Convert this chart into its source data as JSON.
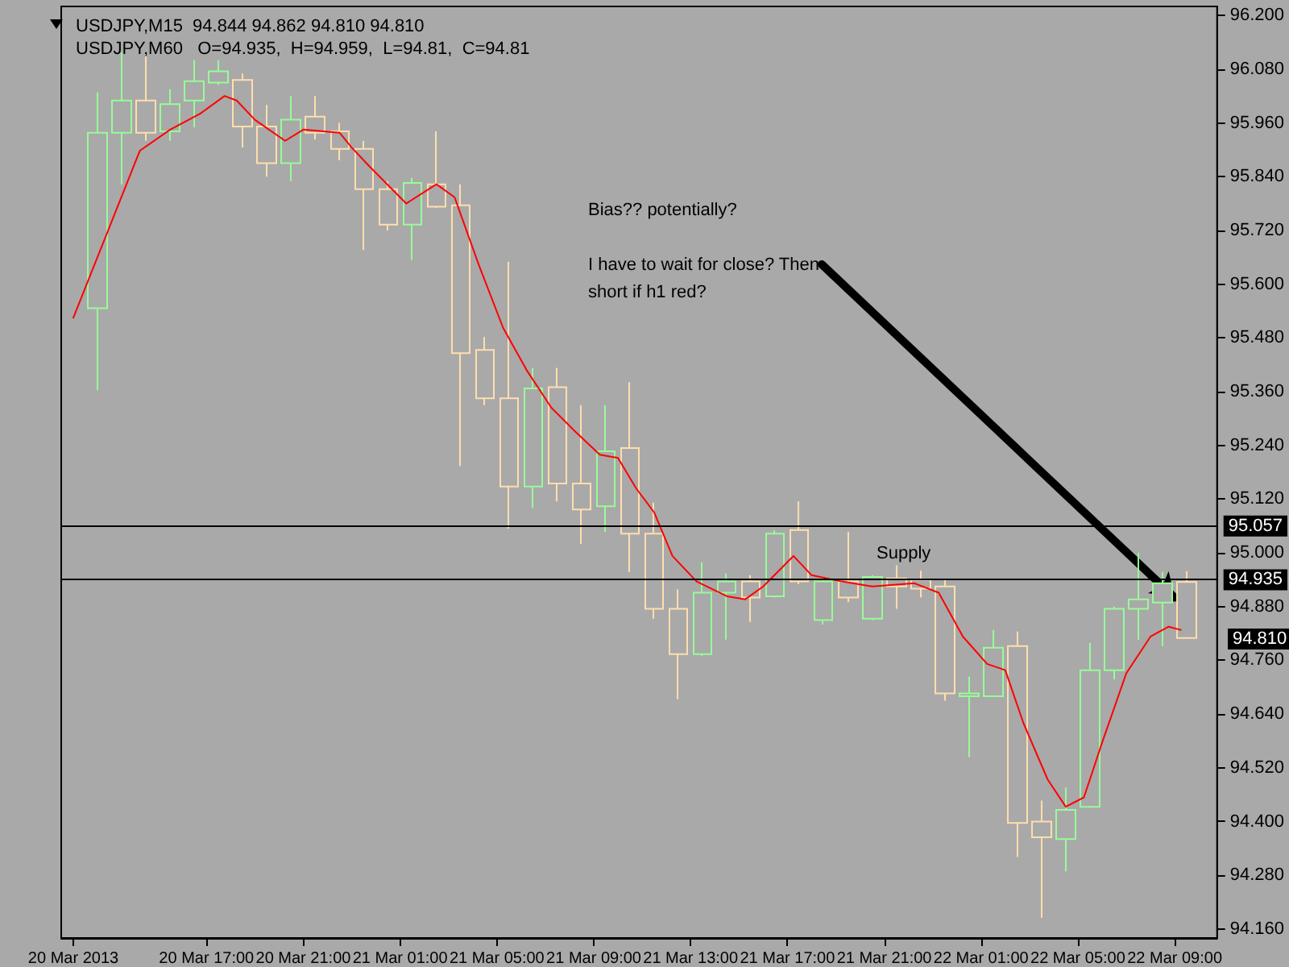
{
  "chart_data": {
    "type": "candlestick",
    "title": "USDJPY,M15  94.844 94.862 94.810 94.810",
    "subtitle": "USDJPY,M60   O=94.935,  H=94.959,  L=94.81,  C=94.81",
    "series": [
      {
        "x": [
          "2013-03-20T12:30",
          "2013-03-20T13:30",
          "2013-03-20T14:30",
          "2013-03-20T15:30",
          "2013-03-20T16:30",
          "2013-03-20T17:30",
          "2013-03-20T18:30",
          "2013-03-20T19:30",
          "2013-03-20T20:30",
          "2013-03-20T21:30",
          "2013-03-20T22:30",
          "2013-03-20T23:30",
          "2013-03-21T00:30",
          "2013-03-21T01:30",
          "2013-03-21T02:30",
          "2013-03-21T03:30",
          "2013-03-21T04:30",
          "2013-03-21T05:30",
          "2013-03-21T06:30",
          "2013-03-21T07:30",
          "2013-03-21T08:30",
          "2013-03-21T09:30",
          "2013-03-21T10:30",
          "2013-03-21T11:30",
          "2013-03-21T12:30",
          "2013-03-21T13:30",
          "2013-03-21T14:30",
          "2013-03-21T15:30",
          "2013-03-21T16:30",
          "2013-03-21T17:30",
          "2013-03-21T18:30",
          "2013-03-21T19:30",
          "2013-03-21T20:30",
          "2013-03-21T21:30",
          "2013-03-21T22:30",
          "2013-03-21T23:30",
          "2013-03-22T00:30",
          "2013-03-22T01:30",
          "2013-03-22T02:30",
          "2013-03-22T03:30",
          "2013-03-22T04:30",
          "2013-03-22T05:30",
          "2013-03-22T06:30",
          "2013-03-22T07:30",
          "2013-03-22T08:30",
          "2013-03-22T09:30"
        ],
        "ohlc": [
          [
            95.546,
            96.028,
            95.363,
            95.938
          ],
          [
            95.938,
            96.117,
            95.823,
            96.01
          ],
          [
            96.01,
            96.117,
            95.92,
            95.938
          ],
          [
            95.941,
            96.035,
            95.92,
            96.002
          ],
          [
            96.01,
            96.1,
            95.95,
            96.053
          ],
          [
            96.05,
            96.1,
            96.045,
            96.075
          ],
          [
            96.056,
            96.07,
            95.905,
            95.952
          ],
          [
            95.952,
            96.0,
            95.84,
            95.87
          ],
          [
            95.87,
            96.02,
            95.83,
            95.967
          ],
          [
            95.974,
            96.02,
            95.923,
            95.938
          ],
          [
            95.941,
            95.96,
            95.877,
            95.902
          ],
          [
            95.902,
            95.92,
            95.676,
            95.812
          ],
          [
            95.812,
            95.83,
            95.72,
            95.733
          ],
          [
            95.733,
            95.837,
            95.654,
            95.826
          ],
          [
            95.823,
            95.941,
            95.77,
            95.773
          ],
          [
            95.776,
            95.823,
            95.194,
            95.446
          ],
          [
            95.453,
            95.482,
            95.33,
            95.345
          ],
          [
            95.345,
            95.65,
            95.054,
            95.148
          ],
          [
            95.148,
            95.413,
            95.1,
            95.367
          ],
          [
            95.37,
            95.413,
            95.115,
            95.155
          ],
          [
            95.155,
            95.33,
            95.02,
            95.097
          ],
          [
            95.104,
            95.33,
            95.047,
            95.227
          ],
          [
            95.234,
            95.381,
            94.957,
            95.043
          ],
          [
            95.043,
            95.112,
            94.853,
            94.875
          ],
          [
            94.875,
            94.918,
            94.673,
            94.774
          ],
          [
            94.774,
            94.979,
            94.77,
            94.911
          ],
          [
            94.911,
            94.954,
            94.806,
            94.936
          ],
          [
            94.936,
            94.95,
            94.846,
            94.9
          ],
          [
            94.903,
            95.05,
            94.9,
            95.043
          ],
          [
            95.051,
            95.115,
            94.93,
            94.936
          ],
          [
            94.85,
            94.945,
            94.84,
            94.936
          ],
          [
            94.936,
            95.047,
            94.89,
            94.9
          ],
          [
            94.853,
            94.95,
            94.85,
            94.946
          ],
          [
            94.943,
            94.972,
            94.875,
            94.925
          ],
          [
            94.94,
            94.96,
            94.9,
            94.92
          ],
          [
            94.925,
            94.94,
            94.67,
            94.686
          ],
          [
            94.68,
            94.724,
            94.544,
            94.686
          ],
          [
            94.68,
            94.828,
            94.68,
            94.788
          ],
          [
            94.792,
            94.824,
            94.321,
            94.397
          ],
          [
            94.4,
            94.447,
            94.185,
            94.365
          ],
          [
            94.361,
            94.476,
            94.289,
            94.426
          ],
          [
            94.433,
            94.799,
            94.43,
            94.738
          ],
          [
            94.738,
            94.88,
            94.717,
            94.875
          ],
          [
            94.875,
            95.0,
            94.806,
            94.896
          ],
          [
            94.889,
            94.957,
            94.792,
            94.932
          ],
          [
            94.935,
            94.959,
            94.81,
            94.81
          ]
        ],
        "colors": [
          "#98fb98",
          "#98fb98",
          "#ffdead",
          "#98fb98",
          "#98fb98",
          "#98fb98",
          "#ffdead",
          "#ffdead",
          "#98fb98",
          "#ffdead",
          "#ffdead",
          "#ffdead",
          "#ffdead",
          "#98fb98",
          "#ffdead",
          "#ffdead",
          "#ffdead",
          "#ffdead",
          "#98fb98",
          "#ffdead",
          "#ffdead",
          "#98fb98",
          "#ffdead",
          "#ffdead",
          "#ffdead",
          "#98fb98",
          "#98fb98",
          "#ffdead",
          "#98fb98",
          "#ffdead",
          "#98fb98",
          "#ffdead",
          "#98fb98",
          "#ffdead",
          "#ffdead",
          "#ffdead",
          "#98fb98",
          "#98fb98",
          "#ffdead",
          "#ffdead",
          "#98fb98",
          "#98fb98",
          "#98fb98",
          "#98fb98",
          "#98fb98",
          "#ffdead"
        ]
      },
      {
        "type": "line",
        "color": "#ff0000",
        "x": [
          "2013-03-20T11:30",
          "2013-03-20T14:15",
          "2013-03-20T15:30",
          "2013-03-20T16:45",
          "2013-03-20T17:45",
          "2013-03-20T18:15",
          "2013-03-20T19:00",
          "2013-03-20T20:15",
          "2013-03-20T21:00",
          "2013-03-20T22:30",
          "2013-03-20T23:00",
          "2013-03-20T23:45",
          "2013-03-21T01:15",
          "2013-03-21T02:30",
          "2013-03-21T03:15",
          "2013-03-21T04:15",
          "2013-03-21T05:15",
          "2013-03-21T06:15",
          "2013-03-21T07:15",
          "2013-03-21T08:15",
          "2013-03-21T09:15",
          "2013-03-21T10:00",
          "2013-03-21T10:45",
          "2013-03-21T11:30",
          "2013-03-21T12:15",
          "2013-03-21T13:15",
          "2013-03-21T14:30",
          "2013-03-21T15:15",
          "2013-03-21T16:00",
          "2013-03-21T17:15",
          "2013-03-21T18:00",
          "2013-03-21T19:15",
          "2013-03-21T20:30",
          "2013-03-21T22:15",
          "2013-03-21T23:15",
          "2013-03-22T00:15",
          "2013-03-22T01:15",
          "2013-03-22T02:00",
          "2013-03-22T02:45",
          "2013-03-22T03:45",
          "2013-03-22T04:30",
          "2013-03-22T05:15",
          "2013-03-22T06:00",
          "2013-03-22T07:00",
          "2013-03-22T08:00",
          "2013-03-22T08:45",
          "2013-03-22T09:15"
        ],
        "values": [
          95.525,
          95.898,
          95.945,
          95.981,
          96.02,
          96.01,
          95.967,
          95.92,
          95.945,
          95.938,
          95.905,
          95.862,
          95.78,
          95.823,
          95.794,
          95.643,
          95.503,
          95.406,
          95.324,
          95.27,
          95.219,
          95.212,
          95.144,
          95.09,
          94.993,
          94.936,
          94.903,
          94.896,
          94.925,
          94.993,
          94.95,
          94.936,
          94.925,
          94.932,
          94.911,
          94.813,
          94.752,
          94.738,
          94.62,
          94.494,
          94.433,
          94.454,
          94.576,
          94.731,
          94.813,
          94.835,
          94.828
        ]
      }
    ],
    "xlim": [
      "2013-03-20T11:00",
      "2013-03-22T10:45"
    ],
    "xticks": [
      {
        "value": "2013-03-20T11:30",
        "label": "20 Mar 2013"
      },
      {
        "value": "2013-03-20T17:00",
        "label": "20 Mar 17:00"
      },
      {
        "value": "2013-03-20T21:00",
        "label": "20 Mar 21:00"
      },
      {
        "value": "2013-03-21T01:00",
        "label": "21 Mar 01:00"
      },
      {
        "value": "2013-03-21T05:00",
        "label": "21 Mar 05:00"
      },
      {
        "value": "2013-03-21T09:00",
        "label": "21 Mar 09:00"
      },
      {
        "value": "2013-03-21T13:00",
        "label": "21 Mar 13:00"
      },
      {
        "value": "2013-03-21T17:00",
        "label": "21 Mar 17:00"
      },
      {
        "value": "2013-03-21T21:00",
        "label": "21 Mar 21:00"
      },
      {
        "value": "2013-03-22T01:00",
        "label": "22 Mar 01:00"
      },
      {
        "value": "2013-03-22T05:00",
        "label": "22 Mar 05:00"
      },
      {
        "value": "2013-03-22T09:00",
        "label": "22 Mar 09:00"
      }
    ],
    "ylim": [
      94.14,
      96.22
    ],
    "yticks": [
      {
        "value": 94.16,
        "label": "94.160"
      },
      {
        "value": 94.28,
        "label": "94.280"
      },
      {
        "value": 94.4,
        "label": "94.400"
      },
      {
        "value": 94.52,
        "label": "94.520"
      },
      {
        "value": 94.64,
        "label": "94.640"
      },
      {
        "value": 94.76,
        "label": "94.760"
      },
      {
        "value": 94.88,
        "label": "94.880"
      },
      {
        "value": 95.0,
        "label": "95.000"
      },
      {
        "value": 95.12,
        "label": "95.120"
      },
      {
        "value": 95.24,
        "label": "95.240"
      },
      {
        "value": 95.36,
        "label": "95.360"
      },
      {
        "value": 95.48,
        "label": "95.480"
      },
      {
        "value": 95.6,
        "label": "95.600"
      },
      {
        "value": 95.72,
        "label": "95.720"
      },
      {
        "value": 95.84,
        "label": "95.840"
      },
      {
        "value": 95.96,
        "label": "95.960"
      },
      {
        "value": 96.08,
        "label": "96.080"
      },
      {
        "value": 96.2,
        "label": "96.200"
      }
    ],
    "ref_lines": [
      {
        "axis": "y",
        "value": 95.057,
        "label": "95.057",
        "color": "#000000"
      },
      {
        "axis": "y",
        "value": 94.935,
        "label": "94.935",
        "color": "#000000"
      }
    ],
    "annotations": [
      "Bias?? potentially?",
      {
        "text": "I have to wait for close? Then short if h1 red?",
        "x": "2013-03-22T09:00",
        "y": 94.9
      },
      "Supply",
      "94.810"
    ],
    "marker": "none",
    "line_style": "solid",
    "grid": false
  }
}
